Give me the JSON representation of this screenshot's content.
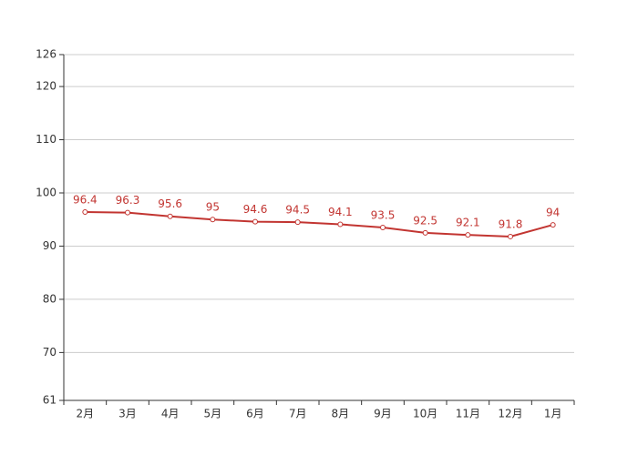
{
  "chart_data": {
    "type": "line",
    "categories": [
      "2月",
      "3月",
      "4月",
      "5月",
      "6月",
      "7月",
      "8月",
      "9月",
      "10月",
      "11月",
      "12月",
      "1月"
    ],
    "series": [
      {
        "name": null,
        "color": "#c23531",
        "values": [
          96.4,
          96.3,
          95.6,
          95,
          94.6,
          94.5,
          94.1,
          93.5,
          92.5,
          92.1,
          91.8,
          94
        ]
      }
    ],
    "ylim": [
      61,
      126
    ],
    "yticks": [
      61,
      70,
      80,
      90,
      100,
      110,
      120,
      126
    ],
    "grid": true
  }
}
